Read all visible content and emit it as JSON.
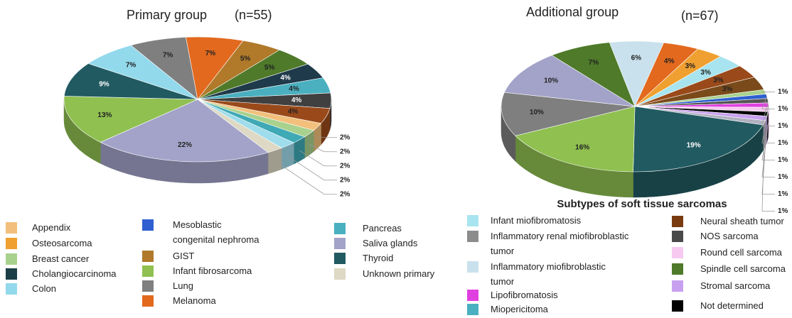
{
  "chart_data": [
    {
      "type": "pie3d",
      "title": "Primary group",
      "n_label": "(n=55)",
      "values": [
        7,
        7,
        5,
        5,
        4,
        4,
        4,
        4,
        2,
        2,
        2,
        2,
        2,
        22,
        13,
        9,
        7
      ],
      "value_labels": [
        "7%",
        "7%",
        "5%",
        "5%",
        "4%",
        "4%",
        "4%",
        "4%",
        "2%",
        "2%",
        "2%",
        "2%",
        "2%",
        "22%",
        "13%",
        "9%",
        "7%"
      ],
      "colors": [
        "#7f7f7f",
        "#e2691e",
        "#b07a2a",
        "#4e7a2a",
        "#1f3a4a",
        "#4ab0c0",
        "#404040",
        "#9a4a1a",
        "#f2c07c",
        "#a9d18e",
        "#3fa9b5",
        "#9fdcec",
        "#ddd9c4",
        "#a3a3c9",
        "#8fc050",
        "#215a61",
        "#93d9ec"
      ],
      "legend": {
        "categories": [
          "Appendix",
          "Osteosarcoma",
          "Breast cancer",
          "Cholangiocarcinoma",
          "Colon",
          "Mesoblastic\ncongenital nephroma",
          "GIST",
          "Infant fibrosarcoma",
          "Lung",
          "Melanoma",
          "Pancreas",
          "Saliva glands",
          "Thyroid",
          "Unknown primary"
        ],
        "colors": [
          "#f2c07c",
          "#f0a030",
          "#a9d18e",
          "#1c3f47",
          "#93d9ec",
          "#2f5fd0",
          "#b07a2a",
          "#8fc050",
          "#7f7f7f",
          "#e2691e",
          "#4ab0c0",
          "#a3a3c9",
          "#215a61",
          "#ddd9c4"
        ]
      }
    },
    {
      "type": "pie3d",
      "title": "Additional group",
      "n_label": "(n=67)",
      "subtitle": "Subtypes of soft tissue sarcomas",
      "values": [
        6,
        4,
        3,
        3,
        3,
        3,
        1,
        1,
        1,
        1,
        1,
        1,
        1,
        1,
        19,
        16,
        10,
        10,
        7
      ],
      "value_labels": [
        "6%",
        "4%",
        "3%",
        "3%",
        "3%",
        "3%",
        "1%",
        "1%",
        "1%",
        "1%",
        "1%",
        "1%",
        "1%",
        "1%",
        "19%",
        "16%",
        "10%",
        "10%",
        "7%"
      ],
      "colors": [
        "#c9e1ec",
        "#e2691e",
        "#f0a030",
        "#a8e4ef",
        "#9a4a1a",
        "#7a4a1a",
        "#a9d18e",
        "#2f5fd0",
        "#555555",
        "#e040e0",
        "#f7c8f0",
        "#000000",
        "#c8a0f0",
        "#b0b0c0",
        "#215a61",
        "#8fc050",
        "#7f7f7f",
        "#a3a3c9",
        "#4e7a2a"
      ],
      "legend": {
        "categories": [
          "Infant miofibromatosis",
          "Inflammatory renal miofibroblastic\ntumor",
          "Inflammatory miofibroblastic\ntumor",
          "Lipofibromatosis",
          "Miopericitoma",
          "Neural sheath tumor",
          "NOS sarcoma",
          "Round cell sarcoma",
          "Spindle cell sarcoma",
          "Stromal sarcoma",
          "Not determined"
        ],
        "colors": [
          "#a8e4ef",
          "#8c8c8c",
          "#c9e1ec",
          "#e040e0",
          "#4ab0c0",
          "#7a3a10",
          "#4a4a4a",
          "#f7c8f0",
          "#4e7a2a",
          "#c8a0f0",
          "#000000"
        ]
      }
    }
  ]
}
